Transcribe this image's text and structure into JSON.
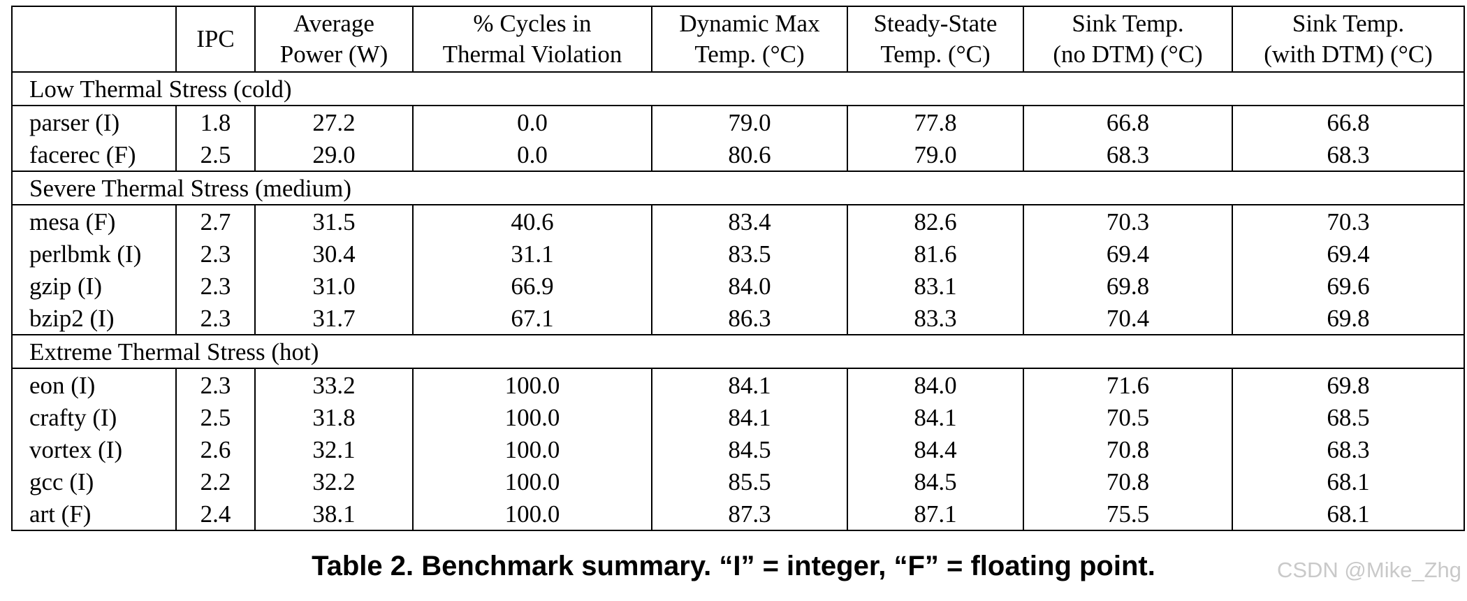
{
  "table": {
    "headers": [
      [
        "",
        ""
      ],
      [
        "IPC",
        ""
      ],
      [
        "Average",
        "Power (W)"
      ],
      [
        "% Cycles in",
        "Thermal Violation"
      ],
      [
        "Dynamic Max",
        "Temp. (°C)"
      ],
      [
        "Steady-State",
        "Temp. (°C)"
      ],
      [
        "Sink Temp.",
        "(no DTM) (°C)"
      ],
      [
        "Sink Temp.",
        "(with DTM) (°C)"
      ]
    ],
    "groups": [
      {
        "label": "Low Thermal Stress (cold)",
        "rows": [
          [
            "parser (I)",
            "1.8",
            "27.2",
            "0.0",
            "79.0",
            "77.8",
            "66.8",
            "66.8"
          ],
          [
            "facerec (F)",
            "2.5",
            "29.0",
            "0.0",
            "80.6",
            "79.0",
            "68.3",
            "68.3"
          ]
        ]
      },
      {
        "label": "Severe Thermal Stress (medium)",
        "rows": [
          [
            "mesa (F)",
            "2.7",
            "31.5",
            "40.6",
            "83.4",
            "82.6",
            "70.3",
            "70.3"
          ],
          [
            "perlbmk (I)",
            "2.3",
            "30.4",
            "31.1",
            "83.5",
            "81.6",
            "69.4",
            "69.4"
          ],
          [
            "gzip (I)",
            "2.3",
            "31.0",
            "66.9",
            "84.0",
            "83.1",
            "69.8",
            "69.6"
          ],
          [
            "bzip2 (I)",
            "2.3",
            "31.7",
            "67.1",
            "86.3",
            "83.3",
            "70.4",
            "69.8"
          ]
        ]
      },
      {
        "label": "Extreme Thermal Stress (hot)",
        "rows": [
          [
            "eon (I)",
            "2.3",
            "33.2",
            "100.0",
            "84.1",
            "84.0",
            "71.6",
            "69.8"
          ],
          [
            "crafty (I)",
            "2.5",
            "31.8",
            "100.0",
            "84.1",
            "84.1",
            "70.5",
            "68.5"
          ],
          [
            "vortex (I)",
            "2.6",
            "32.1",
            "100.0",
            "84.5",
            "84.4",
            "70.8",
            "68.3"
          ],
          [
            "gcc (I)",
            "2.2",
            "32.2",
            "100.0",
            "85.5",
            "84.5",
            "70.8",
            "68.1"
          ],
          [
            "art (F)",
            "2.4",
            "38.1",
            "100.0",
            "87.3",
            "87.1",
            "75.5",
            "68.1"
          ]
        ]
      }
    ]
  },
  "caption": "Table 2. Benchmark summary. “I” = integer, “F” = floating point.",
  "watermark": "CSDN @Mike_Zhg"
}
